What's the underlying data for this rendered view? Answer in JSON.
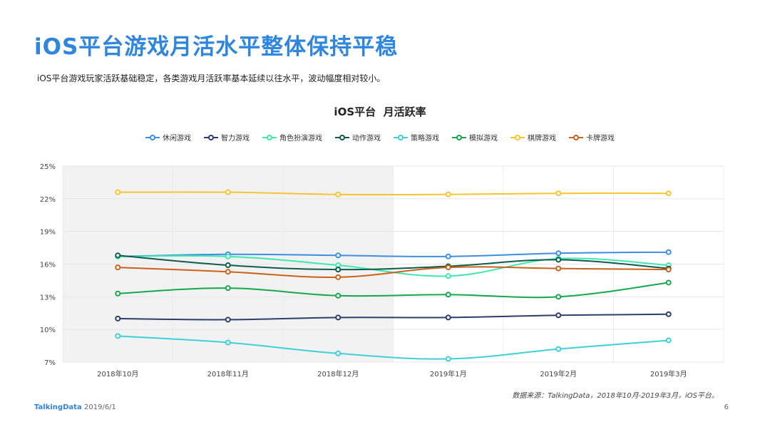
{
  "slide": {
    "title": "iOS平台游戏月活水平整体保持平稳",
    "subtitle": "iOS平台游戏玩家活跃基础稳定，各类游戏月活跃率基本延续以往水平，波动幅度相对较小。",
    "source": "数据来源：TalkingData，2018年10月-2019年3月，iOS平台。",
    "footer_brand": "TalkingData",
    "footer_date": "2019/6/1",
    "page_number": "6"
  },
  "chart_data": {
    "type": "line",
    "title": "iOS平台  月活跃率",
    "categories": [
      "2018年10月",
      "2018年11月",
      "2018年12月",
      "2019年1月",
      "2019年2月",
      "2019年3月"
    ],
    "yticks": [
      "7%",
      "10%",
      "13%",
      "16%",
      "19%",
      "22%",
      "25%"
    ],
    "ylim": [
      7,
      25
    ],
    "y_unit": "%",
    "grid": true,
    "legend_position": "top",
    "shaded_region": [
      "2018年10月",
      "2018年12月"
    ],
    "shaded_color": "#f2f2f2",
    "series": [
      {
        "name": "休闲游戏",
        "color": "#3b8ee3",
        "values": [
          16.7,
          16.9,
          16.8,
          16.7,
          17.0,
          17.1
        ]
      },
      {
        "name": "智力游戏",
        "color": "#2c3e6b",
        "values": [
          11.0,
          10.9,
          11.1,
          11.1,
          11.3,
          11.4
        ]
      },
      {
        "name": "角色扮演游戏",
        "color": "#3ee8b0",
        "values": [
          16.7,
          16.7,
          15.9,
          14.9,
          16.5,
          15.9
        ]
      },
      {
        "name": "动作游戏",
        "color": "#0e5c4a",
        "values": [
          16.8,
          15.9,
          15.5,
          15.8,
          16.4,
          15.6
        ]
      },
      {
        "name": "策略游戏",
        "color": "#3ed0d8",
        "values": [
          9.4,
          8.8,
          7.8,
          7.3,
          8.2,
          9.0
        ]
      },
      {
        "name": "模拟游戏",
        "color": "#16a84c",
        "values": [
          13.3,
          13.8,
          13.1,
          13.2,
          13.0,
          14.3
        ]
      },
      {
        "name": "棋牌游戏",
        "color": "#f6c430",
        "values": [
          22.6,
          22.6,
          22.4,
          22.4,
          22.5,
          22.5
        ]
      },
      {
        "name": "卡牌游戏",
        "color": "#c8621c",
        "values": [
          15.7,
          15.3,
          14.8,
          15.7,
          15.6,
          15.5
        ]
      }
    ]
  }
}
